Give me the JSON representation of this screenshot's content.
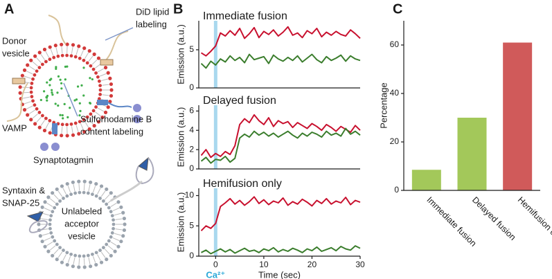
{
  "panel_labels": [
    "A",
    "B",
    "C"
  ],
  "diagram": {
    "did_label": [
      "DiD lipid",
      "labeling"
    ],
    "donor_label": [
      "Donor",
      "vesicle"
    ],
    "vamp_label": "VAMP",
    "content_label": [
      "Sulforhodamine B",
      "content labeling"
    ],
    "synaptotagmin_label": "Synaptotagmin",
    "syntaxin_label": [
      "Syntaxin &",
      "SNAP-25"
    ],
    "acceptor_label": [
      "Unlabeled",
      "acceptor",
      "vesicle"
    ]
  },
  "chart_data": [
    {
      "type": "line",
      "title": "Immediate fusion",
      "ylabel": "Emission (a.u.)",
      "x": [
        -3,
        -2,
        -1,
        0,
        1,
        2,
        3,
        4,
        5,
        6,
        7,
        8,
        9,
        10,
        11,
        12,
        13,
        14,
        15,
        16,
        17,
        18,
        19,
        20,
        21,
        22,
        23,
        24,
        25,
        26,
        27,
        28,
        29,
        30
      ],
      "series": [
        {
          "color": "#c8102e",
          "values": [
            4.6,
            4.2,
            4.8,
            5.5,
            7.2,
            6.8,
            7.5,
            6.9,
            7.8,
            6.5,
            7.1,
            7.9,
            6.6,
            7.4,
            7.0,
            7.6,
            6.8,
            7.3,
            8.0,
            6.9,
            7.2,
            6.6,
            7.5,
            7.1,
            7.8,
            6.7,
            7.3,
            6.9,
            7.4,
            7.0,
            6.8,
            7.6,
            7.1,
            6.5
          ]
        },
        {
          "color": "#3a7d2c",
          "values": [
            3.2,
            2.6,
            3.5,
            3.0,
            3.8,
            3.4,
            4.2,
            3.6,
            4.0,
            3.3,
            4.4,
            3.7,
            3.9,
            4.1,
            3.2,
            4.3,
            3.8,
            3.5,
            4.0,
            3.6,
            4.2,
            3.4,
            3.9,
            4.4,
            3.7,
            3.3,
            4.1,
            3.6,
            3.9,
            4.3,
            3.5,
            4.2,
            3.8,
            3.6
          ]
        }
      ],
      "xlim": [
        -3.5,
        30
      ],
      "ylim": [
        0,
        8.8
      ],
      "yticks": [
        0,
        5
      ],
      "highlight_x": 0,
      "highlight_color": "#a9d8ee"
    },
    {
      "type": "line",
      "title": "Delayed fusion",
      "ylabel": "Emission (a.u.)",
      "x": [
        -3,
        -2,
        -1,
        0,
        1,
        2,
        3,
        4,
        5,
        6,
        7,
        8,
        9,
        10,
        11,
        12,
        13,
        14,
        15,
        16,
        17,
        18,
        19,
        20,
        21,
        22,
        23,
        24,
        25,
        26,
        27,
        28,
        29,
        30
      ],
      "series": [
        {
          "color": "#c8102e",
          "values": [
            1.4,
            2.0,
            1.2,
            1.6,
            1.3,
            1.8,
            1.5,
            2.4,
            4.6,
            5.2,
            4.8,
            5.6,
            5.0,
            4.6,
            5.3,
            4.4,
            5.0,
            4.7,
            4.9,
            4.3,
            4.8,
            4.5,
            4.2,
            4.7,
            4.4,
            4.0,
            4.6,
            4.3,
            3.9,
            4.4,
            4.1,
            3.8,
            4.5,
            4.0
          ]
        },
        {
          "color": "#3a7d2c",
          "values": [
            0.8,
            1.2,
            0.6,
            1.0,
            0.9,
            1.3,
            0.7,
            1.1,
            3.2,
            3.6,
            3.3,
            3.9,
            3.5,
            3.8,
            3.4,
            3.7,
            3.3,
            3.6,
            3.9,
            3.5,
            3.2,
            3.7,
            3.4,
            3.8,
            3.6,
            3.3,
            3.9,
            3.5,
            3.7,
            3.4,
            4.2,
            3.6,
            3.9,
            3.5
          ]
        }
      ],
      "xlim": [
        -3.5,
        30
      ],
      "ylim": [
        0,
        6.6
      ],
      "yticks": [
        0,
        2,
        4,
        6
      ],
      "highlight_x": 0,
      "highlight_color": "#a9d8ee"
    },
    {
      "type": "line",
      "title": "Hemifusion only",
      "ylabel": "Emission (a.u.)",
      "xlabel": "Time (sec)",
      "annotation": "Ca²⁺",
      "annotation_color": "#29a8d8",
      "x": [
        -3,
        -2,
        -1,
        0,
        1,
        2,
        3,
        4,
        5,
        6,
        7,
        8,
        9,
        10,
        11,
        12,
        13,
        14,
        15,
        16,
        17,
        18,
        19,
        20,
        21,
        22,
        23,
        24,
        25,
        26,
        27,
        28,
        29,
        30
      ],
      "series": [
        {
          "color": "#c8102e",
          "values": [
            4.2,
            5.0,
            4.6,
            5.4,
            8.2,
            8.8,
            9.5,
            8.6,
            9.2,
            8.4,
            9.0,
            9.8,
            8.7,
            9.3,
            8.5,
            9.1,
            8.8,
            9.6,
            8.4,
            9.0,
            8.6,
            9.4,
            8.9,
            8.3,
            9.2,
            8.7,
            9.5,
            8.6,
            9.1,
            8.8,
            9.7,
            8.5,
            9.2,
            8.9
          ]
        },
        {
          "color": "#3a7d2c",
          "values": [
            0.6,
            1.0,
            0.4,
            0.8,
            1.2,
            0.7,
            1.1,
            0.5,
            0.9,
            1.3,
            0.8,
            1.0,
            0.6,
            1.2,
            0.9,
            1.4,
            0.7,
            1.1,
            0.8,
            1.3,
            1.0,
            0.6,
            1.2,
            0.9,
            1.5,
            0.8,
            1.1,
            1.4,
            0.9,
            1.6,
            1.2,
            1.0,
            1.7,
            1.3
          ]
        }
      ],
      "xlim": [
        -3.5,
        30
      ],
      "xticks": [
        0,
        10,
        20,
        30
      ],
      "ylim": [
        0,
        11.2
      ],
      "yticks": [
        0,
        5,
        10
      ],
      "highlight_x": 0,
      "highlight_color": "#a9d8ee"
    },
    {
      "type": "bar",
      "ylabel": "Percentage",
      "categories": [
        "Immediate fusion",
        "Delayed fusion",
        "Hemifusion only"
      ],
      "values": [
        8.5,
        30,
        61
      ],
      "colors": [
        "#a3c85a",
        "#a3c85a",
        "#d05a5a"
      ],
      "ylim": [
        0,
        70
      ],
      "yticks": [
        0,
        20,
        40,
        60
      ]
    }
  ]
}
